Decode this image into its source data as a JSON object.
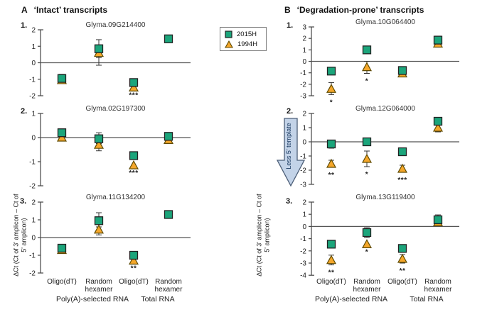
{
  "figure": {
    "panel_a_header": {
      "letter": "A",
      "title": "‘Intact’ transcripts"
    },
    "panel_b_header": {
      "letter": "B",
      "title": "‘Degradation-prone’ transcripts"
    }
  },
  "legend": {
    "items": [
      {
        "label": "2015H",
        "marker": "square",
        "color": "#1BA57B"
      },
      {
        "label": "1994H",
        "marker": "triangle",
        "color": "#F5A72A"
      }
    ]
  },
  "annotation_arrow": {
    "label": "Less 5' template",
    "fill": "#C3D3E8",
    "stroke": "#4C5E77",
    "text_color": "#17375E"
  },
  "axis": {
    "y_label": "ΔCt (Ct of 3' amplicon – Ct of 5' amplicon)",
    "categories": [
      "Oligo(dT)",
      "Random hexamer",
      "Oligo(dT)",
      "Random hexamer"
    ],
    "groups": [
      "Poly(A)-selected RNA",
      "Total RNA"
    ]
  },
  "chart_data": [
    {
      "id": "A1",
      "type": "scatter",
      "column": "A",
      "row_label": "1.",
      "title": "Glyma.09G214400",
      "ylim": [
        -2,
        2
      ],
      "yticks": [
        2,
        1,
        0,
        -1,
        -2
      ],
      "series_names": [
        "2015H",
        "1994H"
      ],
      "points": [
        {
          "x": "Oligo(dT)",
          "group": "Poly(A)-selected RNA",
          "y_2015H": -0.95,
          "err_2015H": [
            -1.25,
            -0.7
          ],
          "y_1994H": -1.05,
          "err_1994H": null,
          "sig": null
        },
        {
          "x": "Random hexamer",
          "group": "Poly(A)-selected RNA",
          "y_2015H": 0.85,
          "err_2015H": [
            0.3,
            1.4
          ],
          "y_1994H": 0.6,
          "err_1994H": [
            -0.15,
            0.9
          ],
          "sig": null
        },
        {
          "x": "Oligo(dT)",
          "group": "Total RNA",
          "y_2015H": -1.2,
          "err_2015H": null,
          "y_1994H": -1.5,
          "err_1994H": null,
          "sig": "***"
        },
        {
          "x": "Random hexamer",
          "group": "Total RNA",
          "y_2015H": 1.45,
          "err_2015H": [
            1.3,
            1.6
          ],
          "y_1994H": null,
          "err_1994H": null,
          "sig": null
        }
      ]
    },
    {
      "id": "A2",
      "type": "scatter",
      "column": "A",
      "row_label": "2.",
      "title": "Glyma.02G197300",
      "ylim": [
        -2,
        1
      ],
      "yticks": [
        1,
        0,
        -1,
        -2
      ],
      "series_names": [
        "2015H",
        "1994H"
      ],
      "points": [
        {
          "x": "Oligo(dT)",
          "group": "Poly(A)-selected RNA",
          "y_2015H": 0.2,
          "err_2015H": [
            0.05,
            0.35
          ],
          "y_1994H": 0.0,
          "err_1994H": null,
          "sig": null
        },
        {
          "x": "Random hexamer",
          "group": "Poly(A)-selected RNA",
          "y_2015H": -0.05,
          "err_2015H": [
            -0.25,
            0.2
          ],
          "y_1994H": -0.3,
          "err_1994H": [
            -0.55,
            -0.1
          ],
          "sig": null
        },
        {
          "x": "Oligo(dT)",
          "group": "Total RNA",
          "y_2015H": -0.75,
          "err_2015H": null,
          "y_1994H": -1.15,
          "err_1994H": null,
          "sig": "***"
        },
        {
          "x": "Random hexamer",
          "group": "Total RNA",
          "y_2015H": 0.05,
          "err_2015H": [
            -0.1,
            0.15
          ],
          "y_1994H": -0.1,
          "err_1994H": null,
          "sig": null
        }
      ]
    },
    {
      "id": "A3",
      "type": "scatter",
      "column": "A",
      "row_label": "3.",
      "title": "Glyma.11G134200",
      "ylim": [
        -2,
        2
      ],
      "yticks": [
        2,
        1,
        0,
        -1,
        -2
      ],
      "series_names": [
        "2015H",
        "1994H"
      ],
      "points": [
        {
          "x": "Oligo(dT)",
          "group": "Poly(A)-selected RNA",
          "y_2015H": -0.6,
          "err_2015H": [
            -0.8,
            -0.45
          ],
          "y_1994H": -0.7,
          "err_1994H": null,
          "sig": null
        },
        {
          "x": "Random hexamer",
          "group": "Poly(A)-selected RNA",
          "y_2015H": 0.95,
          "err_2015H": [
            0.6,
            1.4
          ],
          "y_1994H": 0.45,
          "err_1994H": [
            0.15,
            0.75
          ],
          "sig": null
        },
        {
          "x": "Oligo(dT)",
          "group": "Total RNA",
          "y_2015H": -1.0,
          "err_2015H": null,
          "y_1994H": -1.3,
          "err_1994H": null,
          "sig": "**"
        },
        {
          "x": "Random hexamer",
          "group": "Total RNA",
          "y_2015H": 1.3,
          "err_2015H": [
            1.15,
            1.45
          ],
          "y_1994H": null,
          "err_1994H": null,
          "sig": null
        }
      ]
    },
    {
      "id": "B1",
      "type": "scatter",
      "column": "B",
      "row_label": "1.",
      "title": "Glyma.10G064400",
      "ylim": [
        -3,
        3
      ],
      "yticks": [
        3,
        2,
        1,
        0,
        -1,
        -2,
        -3
      ],
      "series_names": [
        "2015H",
        "1994H"
      ],
      "points": [
        {
          "x": "Oligo(dT)",
          "group": "Poly(A)-selected RNA",
          "y_2015H": -0.85,
          "err_2015H": null,
          "y_1994H": -2.4,
          "err_1994H": [
            -2.9,
            -1.85
          ],
          "sig": "*"
        },
        {
          "x": "Random hexamer",
          "group": "Poly(A)-selected RNA",
          "y_2015H": 1.0,
          "err_2015H": null,
          "y_1994H": -0.5,
          "err_1994H": [
            -1.05,
            0.0
          ],
          "sig": "*"
        },
        {
          "x": "Oligo(dT)",
          "group": "Total RNA",
          "y_2015H": -0.8,
          "err_2015H": null,
          "y_1994H": -1.05,
          "err_1994H": null,
          "sig": null
        },
        {
          "x": "Random hexamer",
          "group": "Total RNA",
          "y_2015H": 1.85,
          "err_2015H": [
            1.55,
            2.2
          ],
          "y_1994H": 1.55,
          "err_1994H": null,
          "sig": null
        }
      ]
    },
    {
      "id": "B2",
      "type": "scatter",
      "column": "B",
      "row_label": "2.",
      "title": "Glyma.12G064000",
      "ylim": [
        -3,
        2
      ],
      "yticks": [
        2,
        1,
        0,
        -1,
        -2,
        -3
      ],
      "series_names": [
        "2015H",
        "1994H"
      ],
      "points": [
        {
          "x": "Oligo(dT)",
          "group": "Poly(A)-selected RNA",
          "y_2015H": -0.15,
          "err_2015H": [
            -0.45,
            0.1
          ],
          "y_1994H": -1.55,
          "err_1994H": [
            -1.8,
            -1.3
          ],
          "sig": "**"
        },
        {
          "x": "Random hexamer",
          "group": "Poly(A)-selected RNA",
          "y_2015H": 0.0,
          "err_2015H": [
            -0.2,
            0.2
          ],
          "y_1994H": -1.2,
          "err_1994H": [
            -1.75,
            -0.65
          ],
          "sig": "*"
        },
        {
          "x": "Oligo(dT)",
          "group": "Total RNA",
          "y_2015H": -0.7,
          "err_2015H": null,
          "y_1994H": -1.9,
          "err_1994H": [
            -2.15,
            -1.65
          ],
          "sig": "***"
        },
        {
          "x": "Random hexamer",
          "group": "Total RNA",
          "y_2015H": 1.45,
          "err_2015H": [
            1.2,
            1.7
          ],
          "y_1994H": 1.0,
          "err_1994H": [
            0.7,
            1.3
          ],
          "sig": null
        }
      ]
    },
    {
      "id": "B3",
      "type": "scatter",
      "column": "B",
      "row_label": "3.",
      "title": "Glyma.13G119400",
      "ylim": [
        -4,
        2
      ],
      "yticks": [
        2,
        1,
        0,
        -1,
        -2,
        -3,
        -4
      ],
      "series_names": [
        "2015H",
        "1994H"
      ],
      "points": [
        {
          "x": "Oligo(dT)",
          "group": "Poly(A)-selected RNA",
          "y_2015H": -1.45,
          "err_2015H": null,
          "y_1994H": -2.75,
          "err_1994H": [
            -3.15,
            -2.35
          ],
          "sig": "**"
        },
        {
          "x": "Random hexamer",
          "group": "Poly(A)-selected RNA",
          "y_2015H": -0.5,
          "err_2015H": [
            -0.9,
            -0.1
          ],
          "y_1994H": -1.45,
          "err_1994H": null,
          "sig": "*"
        },
        {
          "x": "Oligo(dT)",
          "group": "Total RNA",
          "y_2015H": -1.8,
          "err_2015H": null,
          "y_1994H": -2.65,
          "err_1994H": [
            -3.0,
            -2.3
          ],
          "sig": "**"
        },
        {
          "x": "Random hexamer",
          "group": "Total RNA",
          "y_2015H": 0.55,
          "err_2015H": [
            0.3,
            0.95
          ],
          "y_1994H": 0.35,
          "err_1994H": null,
          "sig": null
        }
      ]
    }
  ]
}
